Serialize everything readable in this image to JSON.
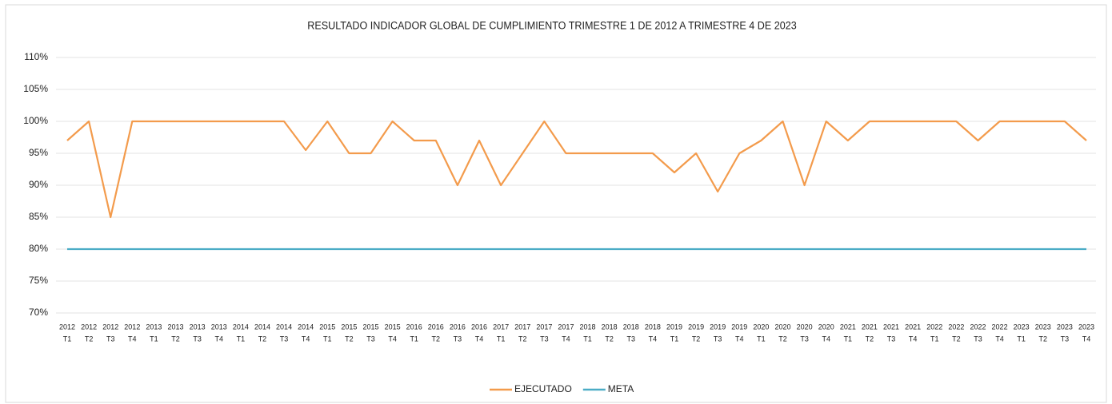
{
  "chart_data": {
    "type": "line",
    "title": "RESULTADO INDICADOR GLOBAL DE CUMPLIMIENTO TRIMESTRE 1 DE 2012 A TRIMESTRE 4 DE 2023",
    "categories": [
      [
        "2012",
        "T1"
      ],
      [
        "2012",
        "T2"
      ],
      [
        "2012",
        "T3"
      ],
      [
        "2012",
        "T4"
      ],
      [
        "2013",
        "T1"
      ],
      [
        "2013",
        "T2"
      ],
      [
        "2013",
        "T3"
      ],
      [
        "2013",
        "T4"
      ],
      [
        "2014",
        "T1"
      ],
      [
        "2014",
        "T2"
      ],
      [
        "2014",
        "T3"
      ],
      [
        "2014",
        "T4"
      ],
      [
        "2015",
        "T1"
      ],
      [
        "2015",
        "T2"
      ],
      [
        "2015",
        "T3"
      ],
      [
        "2015",
        "T4"
      ],
      [
        "2016",
        "T1"
      ],
      [
        "2016",
        "T2"
      ],
      [
        "2016",
        "T3"
      ],
      [
        "2016",
        "T4"
      ],
      [
        "2017",
        "T1"
      ],
      [
        "2017",
        "T2"
      ],
      [
        "2017",
        "T3"
      ],
      [
        "2017",
        "T4"
      ],
      [
        "2018",
        "T1"
      ],
      [
        "2018",
        "T2"
      ],
      [
        "2018",
        "T3"
      ],
      [
        "2018",
        "T4"
      ],
      [
        "2019",
        "T1"
      ],
      [
        "2019",
        "T2"
      ],
      [
        "2019",
        "T3"
      ],
      [
        "2019",
        "T4"
      ],
      [
        "2020",
        "T1"
      ],
      [
        "2020",
        "T2"
      ],
      [
        "2020",
        "T3"
      ],
      [
        "2020",
        "T4"
      ],
      [
        "2021",
        "T1"
      ],
      [
        "2021",
        "T2"
      ],
      [
        "2021",
        "T3"
      ],
      [
        "2021",
        "T4"
      ],
      [
        "2022",
        "T1"
      ],
      [
        "2022",
        "T2"
      ],
      [
        "2022",
        "T3"
      ],
      [
        "2022",
        "T4"
      ],
      [
        "2023",
        "T1"
      ],
      [
        "2023",
        "T2"
      ],
      [
        "2023",
        "T3"
      ],
      [
        "2023",
        "T4"
      ]
    ],
    "series": [
      {
        "name": "EJECUTADO",
        "color": "#f39b4c",
        "values": [
          97,
          100,
          85,
          100,
          100,
          100,
          100,
          100,
          100,
          100,
          100,
          95.5,
          100,
          95,
          95,
          100,
          97,
          97,
          90,
          97,
          90,
          95,
          100,
          95,
          95,
          95,
          95,
          95,
          92,
          95,
          89,
          95,
          97,
          100,
          90,
          100,
          97,
          100,
          100,
          100,
          100,
          100,
          97,
          100,
          100,
          100,
          100,
          97
        ]
      },
      {
        "name": "META",
        "color": "#4bacc6",
        "values": [
          80,
          80,
          80,
          80,
          80,
          80,
          80,
          80,
          80,
          80,
          80,
          80,
          80,
          80,
          80,
          80,
          80,
          80,
          80,
          80,
          80,
          80,
          80,
          80,
          80,
          80,
          80,
          80,
          80,
          80,
          80,
          80,
          80,
          80,
          80,
          80,
          80,
          80,
          80,
          80,
          80,
          80,
          80,
          80,
          80,
          80,
          80,
          80
        ]
      }
    ],
    "ylim": [
      70,
      110
    ],
    "yticks": [
      {
        "value": 70,
        "label": "70%"
      },
      {
        "value": 75,
        "label": "75%"
      },
      {
        "value": 80,
        "label": "80%"
      },
      {
        "value": 85,
        "label": "85%"
      },
      {
        "value": 90,
        "label": "90%"
      },
      {
        "value": 95,
        "label": "95%"
      },
      {
        "value": 100,
        "label": "100%"
      },
      {
        "value": 105,
        "label": "105%"
      },
      {
        "value": 110,
        "label": "110%"
      }
    ],
    "grid": true,
    "legend": "bottom"
  }
}
